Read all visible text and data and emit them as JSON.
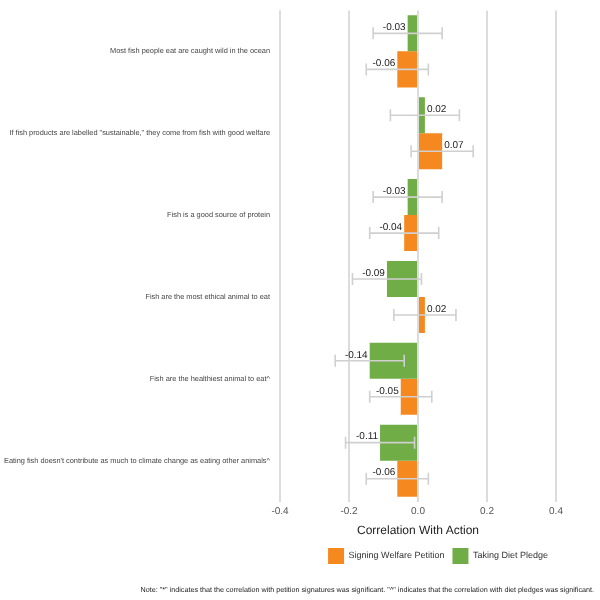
{
  "chart_data": {
    "type": "bar",
    "orientation": "horizontal",
    "xlabel": "Correlation With Action",
    "categories": [
      "Most fish people eat are caught wild in the ocean",
      "If fish products are labelled \"sustainable,\" they come from fish with good welfare",
      "Fish is a good source of protein",
      "Fish are the most ethical animal to eat",
      "Fish are the healthiest animal to eat^",
      "Eating fish doesn't contribute as much to climate change as eating other animals^"
    ],
    "series": [
      {
        "name": "Taking Diet Pledge",
        "color": "#70ad47",
        "values": [
          -0.03,
          0.02,
          -0.03,
          -0.09,
          -0.14,
          -0.11
        ],
        "errors": [
          0.1,
          0.1,
          0.1,
          0.1,
          0.1,
          0.1
        ]
      },
      {
        "name": "Signing Welfare Petition",
        "color": "#f5891f",
        "values": [
          -0.06,
          0.07,
          -0.04,
          0.02,
          -0.05,
          -0.06
        ],
        "errors": [
          0.09,
          0.09,
          0.1,
          0.09,
          0.09,
          0.09
        ]
      }
    ],
    "xlim": [
      -0.4,
      0.4
    ],
    "xticks": [
      -0.4,
      -0.2,
      {
        "value": 0,
        "label": "0.0"
      },
      0.2,
      0.4
    ],
    "grid": "x",
    "legend": "bottom right",
    "data_labels": true,
    "annotations": [
      "Note: \"*\" indicates that the correlation with petition signatures was significant. \"^\" indicates that the correlation with diet pledges was significant."
    ]
  }
}
